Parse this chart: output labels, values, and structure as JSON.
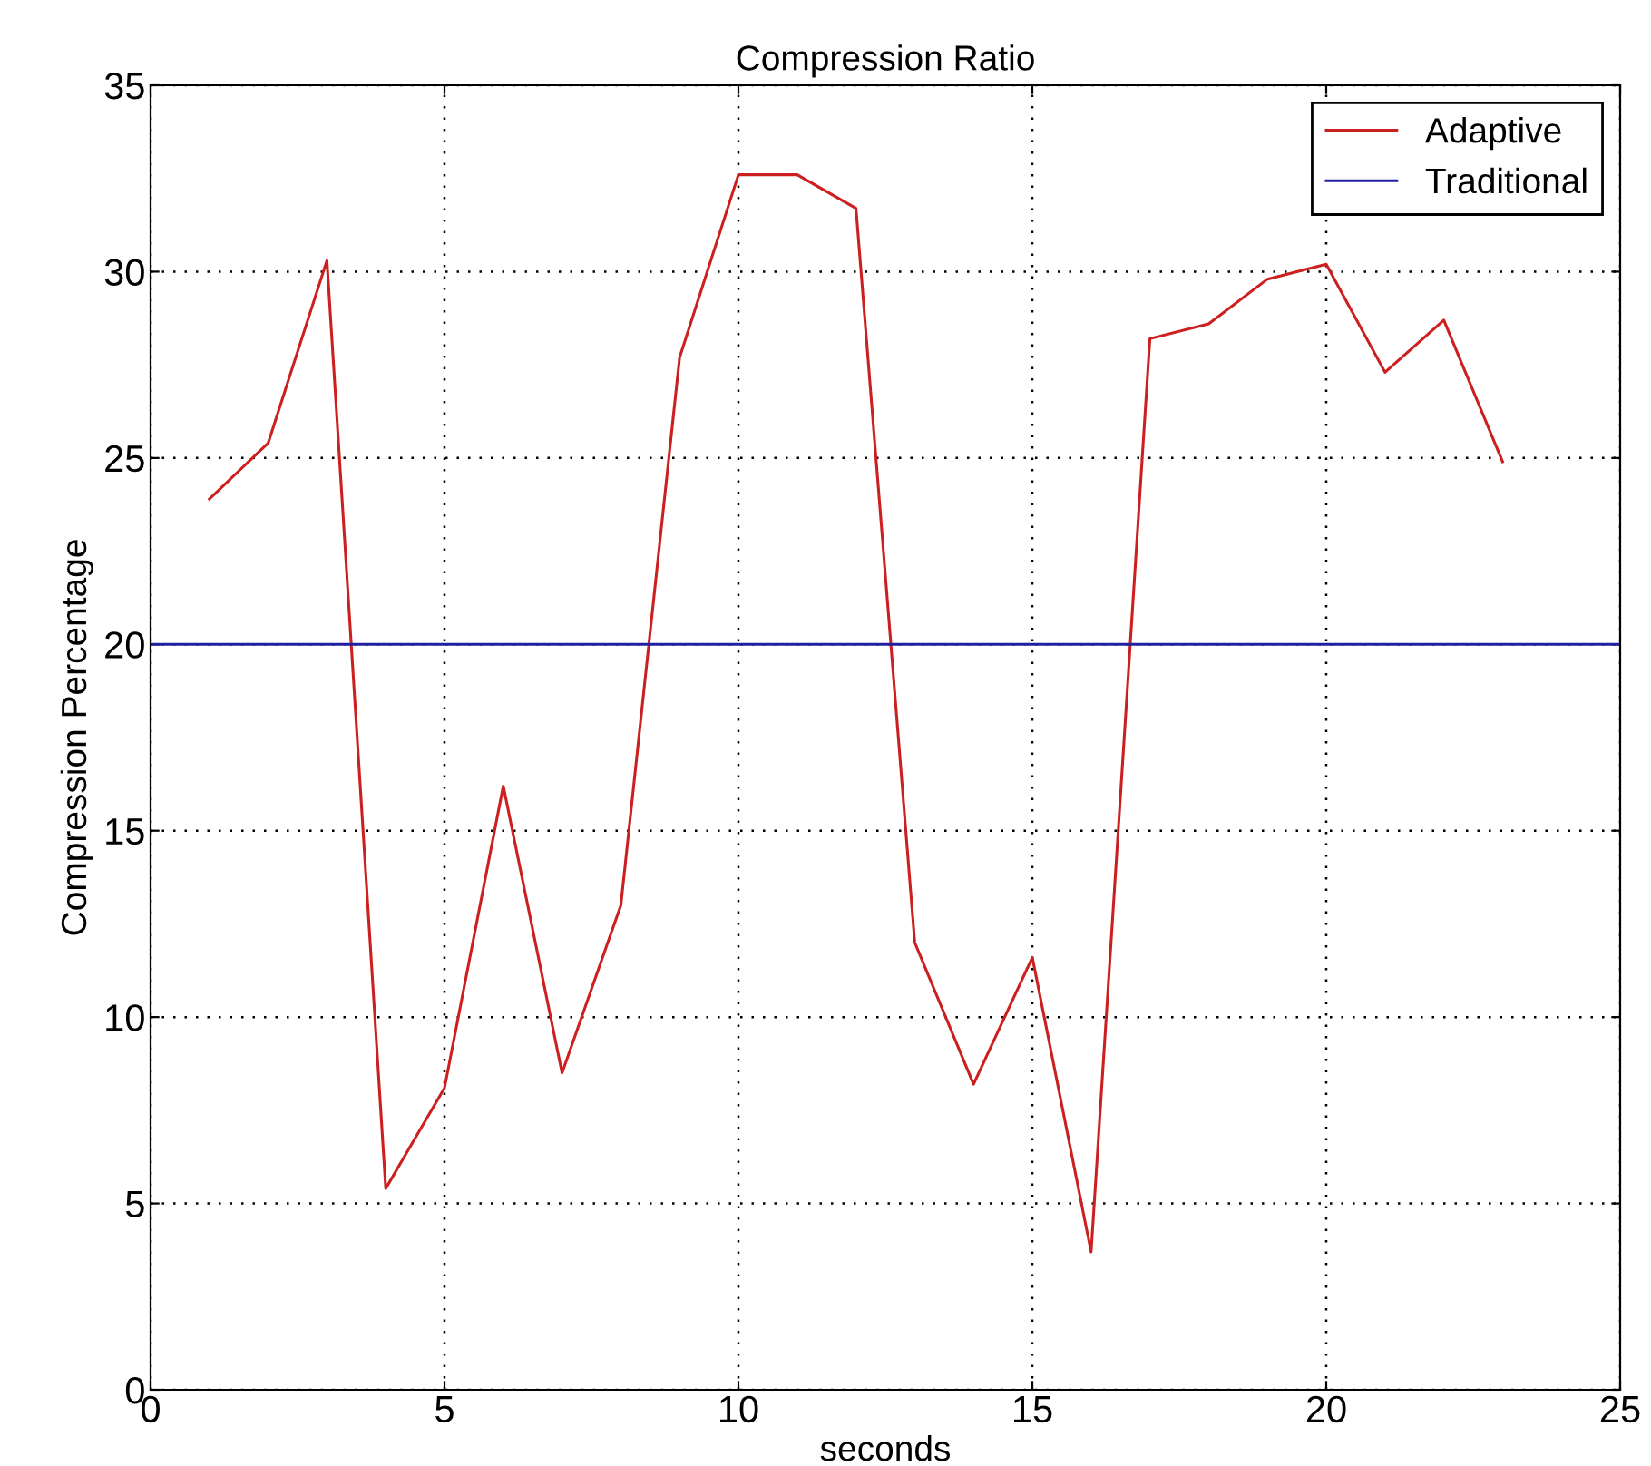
{
  "chart_data": {
    "type": "line",
    "title": "Compression Ratio",
    "xlabel": "seconds",
    "ylabel": "Compression Percentage",
    "series": [
      {
        "name": "Adaptive",
        "color": "#cc2020",
        "x": [
          1,
          2,
          3,
          4,
          5,
          6,
          7,
          8,
          9,
          10,
          11,
          12,
          13,
          14,
          15,
          16,
          17,
          18,
          19,
          20,
          21,
          22,
          23
        ],
        "values": [
          23.9,
          25.4,
          30.3,
          5.4,
          8.1,
          16.2,
          8.5,
          13.0,
          27.7,
          32.6,
          32.6,
          31.7,
          12.0,
          8.2,
          11.6,
          3.7,
          28.2,
          28.6,
          29.8,
          30.2,
          27.3,
          28.7,
          24.9
        ]
      },
      {
        "name": "Traditional",
        "color": "#2020a0",
        "x": [
          0,
          25
        ],
        "values": [
          20,
          20
        ]
      }
    ],
    "xlim": [
      0,
      25
    ],
    "xticks": [
      0,
      5,
      10,
      15,
      20,
      25
    ],
    "ylim": [
      0,
      35
    ],
    "yticks": [
      0,
      5,
      10,
      15,
      20,
      25,
      30,
      35
    ],
    "grid": true,
    "legend": "top right",
    "line_style": "solid",
    "marker": "none"
  }
}
